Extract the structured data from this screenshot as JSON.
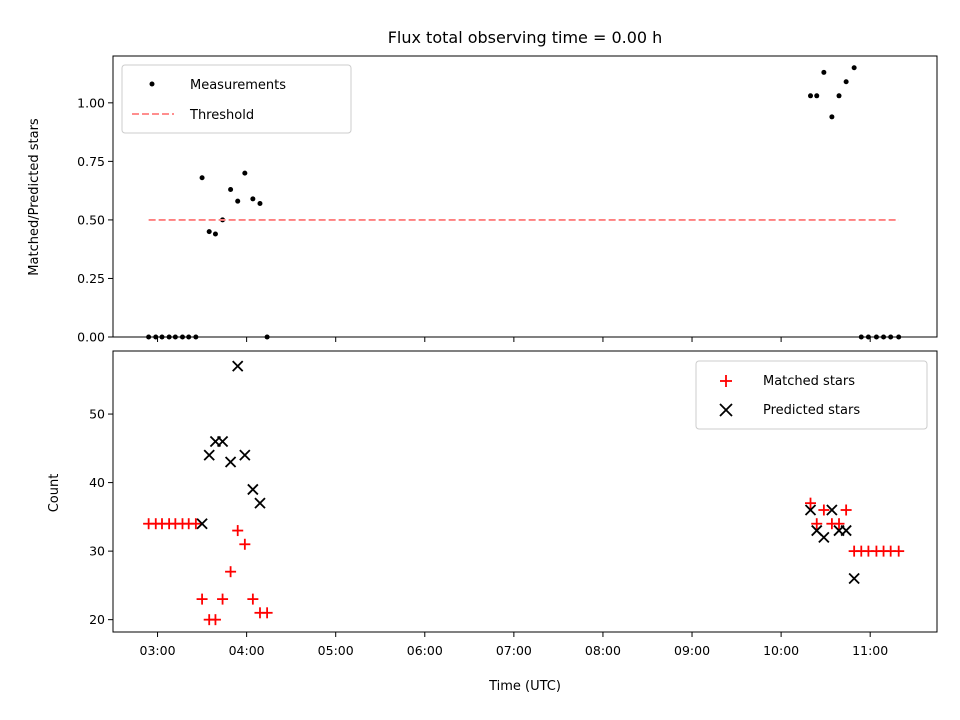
{
  "chart_data": [
    {
      "type": "scatter",
      "title": "Flux total observing time = 0.00 h",
      "xlabel": "",
      "ylabel": "Matched/Predicted stars",
      "xlim": [
        2.5,
        11.75
      ],
      "ylim": [
        0,
        1.2
      ],
      "yticks": [
        0,
        0.25,
        0.5,
        0.75,
        1.0
      ],
      "ytick_labels": [
        "0.00",
        "0.25",
        "0.50",
        "0.75",
        "1.00"
      ],
      "legend_position": "top-left",
      "series": [
        {
          "name": "Measurements",
          "kind": "scatter",
          "color": "#000000",
          "x": [
            2.9,
            2.98,
            3.05,
            3.13,
            3.2,
            3.28,
            3.35,
            3.43,
            3.5,
            3.58,
            3.65,
            3.73,
            3.82,
            3.9,
            3.98,
            4.07,
            4.15,
            4.23,
            10.33,
            10.4,
            10.48,
            10.57,
            10.65,
            10.73,
            10.82,
            10.9,
            10.98,
            11.07,
            11.15,
            11.23,
            11.32
          ],
          "y": [
            0,
            0,
            0,
            0,
            0,
            0,
            0,
            0,
            0.68,
            0.45,
            0.44,
            0.5,
            0.63,
            0.58,
            0.7,
            0.59,
            0.57,
            0,
            1.03,
            1.03,
            1.13,
            0.94,
            1.03,
            1.09,
            1.15,
            0,
            0,
            0,
            0,
            0,
            0
          ]
        },
        {
          "name": "Threshold",
          "kind": "line",
          "style": "dashed",
          "color": "#ff7f7f",
          "x": [
            2.9,
            11.32
          ],
          "y": [
            0.5,
            0.5
          ]
        }
      ]
    },
    {
      "type": "scatter",
      "title": "",
      "xlabel": "Time (UTC)",
      "ylabel": "Count",
      "xlim": [
        2.5,
        11.75
      ],
      "ylim": [
        18.2,
        59.2
      ],
      "yticks": [
        20,
        30,
        40,
        50
      ],
      "ytick_labels": [
        "20",
        "30",
        "40",
        "50"
      ],
      "xticks": [
        3,
        4,
        5,
        6,
        7,
        8,
        9,
        10,
        11
      ],
      "xtick_labels": [
        "03:00",
        "04:00",
        "05:00",
        "06:00",
        "07:00",
        "08:00",
        "09:00",
        "10:00",
        "11:00"
      ],
      "legend_position": "top-right",
      "series": [
        {
          "name": "Matched stars",
          "marker": "plus",
          "color": "#ff0000",
          "x": [
            2.9,
            2.98,
            3.05,
            3.13,
            3.2,
            3.28,
            3.35,
            3.43,
            3.5,
            3.58,
            3.65,
            3.73,
            3.82,
            3.9,
            3.98,
            4.07,
            4.15,
            4.23,
            10.33,
            10.4,
            10.48,
            10.57,
            10.65,
            10.73,
            10.82,
            10.9,
            10.98,
            11.07,
            11.15,
            11.23,
            11.32
          ],
          "y": [
            34,
            34,
            34,
            34,
            34,
            34,
            34,
            34,
            23,
            20,
            20,
            23,
            27,
            33,
            31,
            23,
            21,
            21,
            37,
            34,
            36,
            34,
            34,
            36,
            30,
            30,
            30,
            30,
            30,
            30,
            30
          ]
        },
        {
          "name": "Predicted stars",
          "marker": "x",
          "color": "#000000",
          "x": [
            3.5,
            3.58,
            3.65,
            3.73,
            3.82,
            3.9,
            3.98,
            4.07,
            4.15,
            10.33,
            10.4,
            10.48,
            10.57,
            10.65,
            10.73,
            10.82
          ],
          "y": [
            34,
            44,
            46,
            46,
            43,
            57,
            44,
            39,
            37,
            36,
            33,
            32,
            36,
            33,
            33,
            26
          ]
        }
      ]
    }
  ]
}
